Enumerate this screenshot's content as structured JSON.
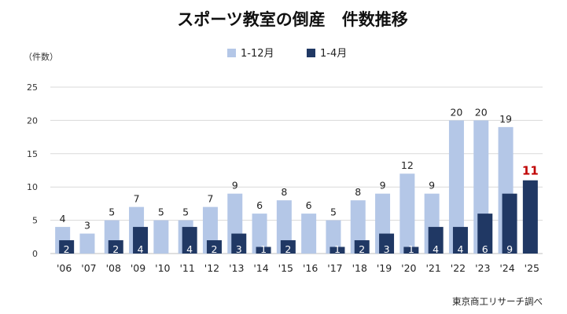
{
  "chart_data": {
    "type": "bar",
    "title": "スポーツ教室の倒産　件数推移",
    "unit_label": "（件数）",
    "source": "東京商工リサーチ調べ",
    "categories": [
      "'06",
      "'07",
      "'08",
      "'09",
      "'10",
      "'11",
      "'12",
      "'13",
      "'14",
      "'15",
      "'16",
      "'17",
      "'18",
      "'19",
      "'20",
      "'21",
      "'22",
      "'23",
      "'24",
      "'25"
    ],
    "series": [
      {
        "name": "1-12月",
        "color": "#b4c7e7",
        "values": [
          4,
          3,
          5,
          7,
          5,
          5,
          7,
          9,
          6,
          8,
          6,
          5,
          8,
          9,
          12,
          9,
          20,
          20,
          19,
          null
        ]
      },
      {
        "name": "1-4月",
        "color": "#203864",
        "values": [
          2,
          0,
          2,
          4,
          0,
          4,
          2,
          3,
          1,
          2,
          0,
          1,
          2,
          3,
          1,
          4,
          4,
          6,
          9,
          11
        ]
      }
    ],
    "highlight": {
      "category": "'25",
      "value": "11",
      "color": "#c00000"
    },
    "ylim": [
      0,
      25
    ],
    "yticks": [
      "0",
      "5",
      "10",
      "15",
      "20",
      "25"
    ],
    "grid": true,
    "legend_position": "top"
  }
}
